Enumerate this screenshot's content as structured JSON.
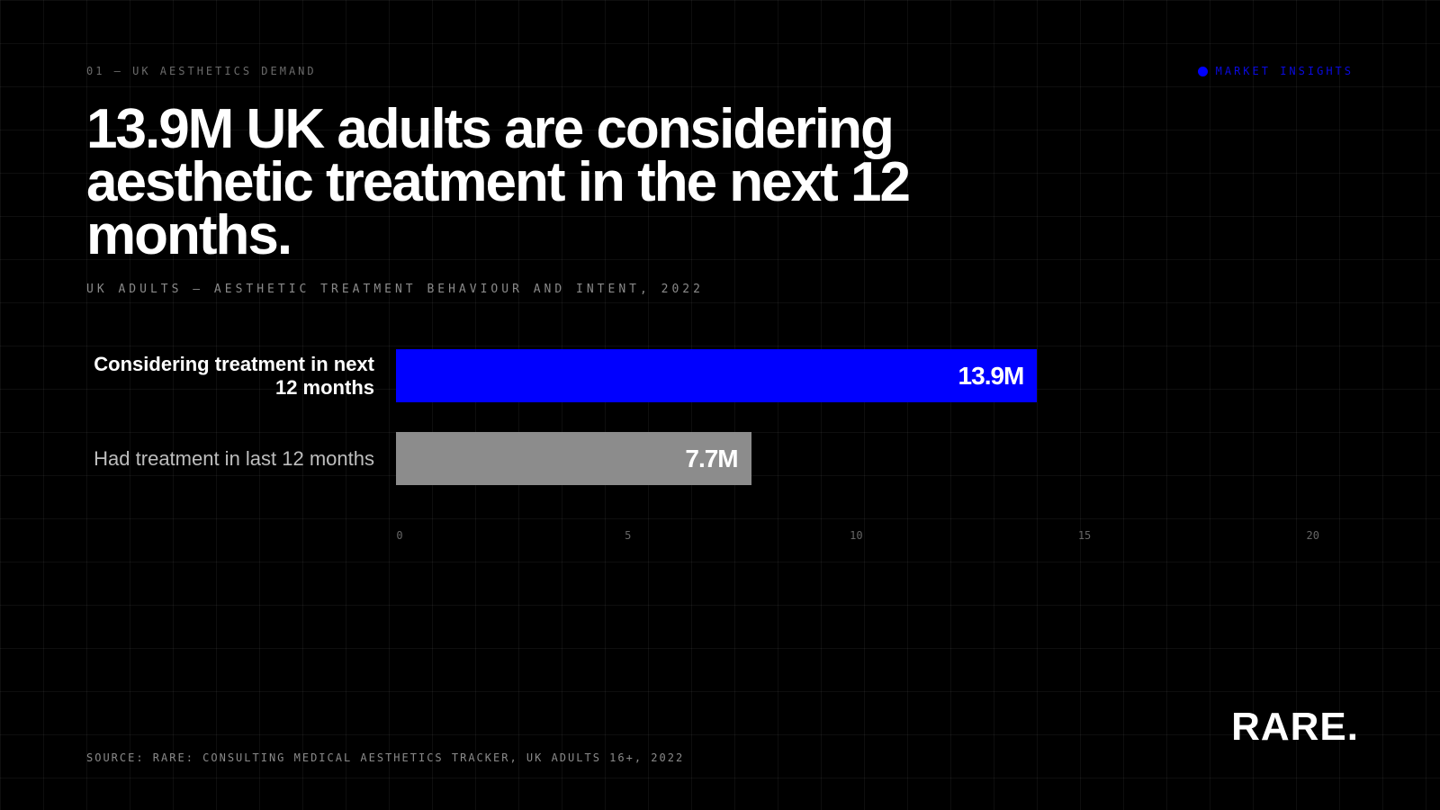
{
  "header": {
    "eyebrow": "01 — UK AESTHETICS DEMAND",
    "tag": "MARKET INSIGHTS"
  },
  "headline": "13.9M UK adults are considering aesthetic treatment in the next 12 months.",
  "subtitle": "UK ADULTS — AESTHETIC TREATMENT BEHAVIOUR AND INTENT, 2022",
  "footer": {
    "source": "SOURCE: RARE: CONSULTING MEDICAL AESTHETICS TRACKER, UK ADULTS 16+, 2022",
    "logo": "RARE."
  },
  "colors": {
    "accent": "#0000FF",
    "secondary_bar": "#8C8C8C",
    "background": "#000000"
  },
  "chart_data": {
    "type": "bar",
    "orientation": "horizontal",
    "title": "13.9M UK adults are considering aesthetic treatment in the next 12 months.",
    "subtitle": "UK ADULTS — AESTHETIC TREATMENT BEHAVIOUR AND INTENT, 2022",
    "categories": [
      "Considering treatment in next 12 months",
      "Had treatment in last 12 months"
    ],
    "values": [
      13.9,
      7.7
    ],
    "value_labels": [
      "13.9M",
      "7.7M"
    ],
    "bar_colors": [
      "#0000FF",
      "#8C8C8C"
    ],
    "xlim": [
      0,
      20
    ],
    "xticks": [
      0,
      5,
      10,
      15,
      20
    ],
    "grid": true,
    "legend": "none"
  }
}
